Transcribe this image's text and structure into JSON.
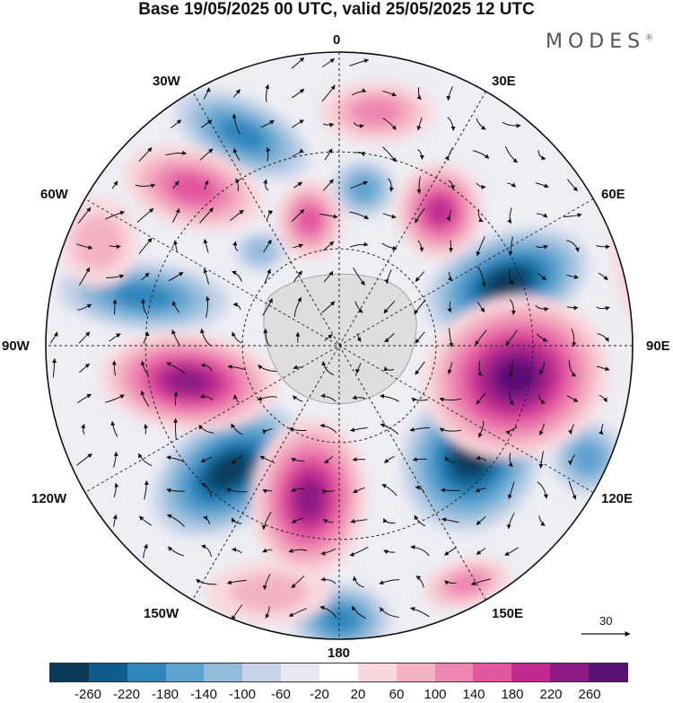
{
  "header": {
    "title": "Base 19/05/2025 00 UTC, valid 25/05/2025 12 UTC",
    "brand": "MODES",
    "brand_mark": "®"
  },
  "map": {
    "projection": "south polar stereographic",
    "longitude_labels": [
      "0",
      "30E",
      "60E",
      "90E",
      "120E",
      "150E",
      "180",
      "150W",
      "120W",
      "90W",
      "60W",
      "30W"
    ],
    "field_description": "anomaly shading with wind vectors",
    "reference_vector_label": "30"
  },
  "colorbar": {
    "colors": [
      "#0c3a5a",
      "#0f5d8c",
      "#2f86bd",
      "#5ea3cf",
      "#93bcdc",
      "#c6d3e8",
      "#e7e8f3",
      "#ffffff",
      "#f8d8de",
      "#f4b3c3",
      "#ee86b3",
      "#e2569f",
      "#c02a8f",
      "#8d1a85",
      "#5a1175"
    ],
    "tick_labels": [
      "-260",
      "-220",
      "-180",
      "-140",
      "-100",
      "-60",
      "-20",
      "20",
      "60",
      "100",
      "140",
      "180",
      "220",
      "260"
    ]
  }
}
